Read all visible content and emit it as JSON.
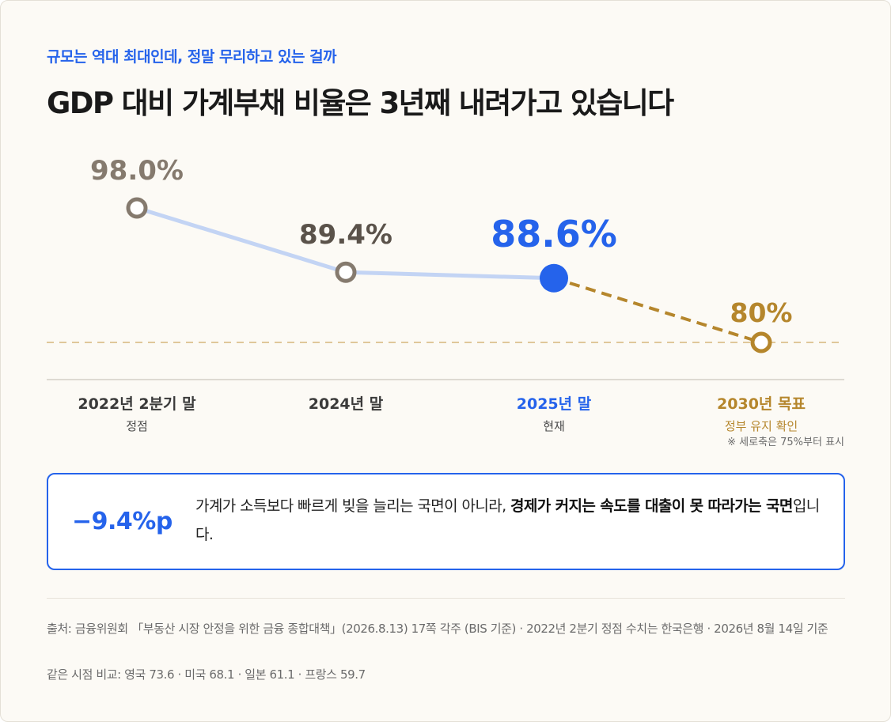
{
  "header": {
    "kicker": "규모는 역대 최대인데, 정말 무리하고 있는 걸까",
    "title": "GDP 대비 가계부채 비율은 3년째 내려가고 있습니다"
  },
  "chart_data": {
    "type": "line",
    "title": "GDP 대비 가계부채 비율은 3년째 내려가고 있습니다",
    "unit": "%",
    "ylim": [
      75,
      100
    ],
    "points": [
      {
        "category": "2022년 2분기 말",
        "sublabel": "정점",
        "value": 98.0,
        "label": "98.0%",
        "status": "past"
      },
      {
        "category": "2024년 말",
        "sublabel": "",
        "value": 89.4,
        "label": "89.4%",
        "status": "past"
      },
      {
        "category": "2025년 말",
        "sublabel": "현재",
        "value": 88.6,
        "label": "88.6%",
        "status": "current"
      },
      {
        "category": "2030년 목표",
        "sublabel": "정부 유지 확인",
        "value": 80,
        "label": "80%",
        "status": "target"
      }
    ],
    "reference_line": {
      "value": 80,
      "style": "dashed"
    },
    "axis_note": "※ 세로축은 75%부터 표시",
    "colors": {
      "past_line": "#c3d4f4",
      "past_marker": "#857a6e",
      "past_label": "#5a524a",
      "current": "#2563eb",
      "target": "#b5862c",
      "reference": "#dfc79a",
      "category": "#3a3a3a"
    }
  },
  "callout": {
    "metric": "−9.4%p",
    "text_plain": "가계가 소득보다 빠르게 빚을 늘리는 국면이 아니라, ",
    "text_bold": "경제가 커지는 속도를 대출이 못 따라가는 국면",
    "text_end": "입니다."
  },
  "footer": {
    "source": "출처: 금융위원회 「부동산 시장 안정을 위한 금융 종합대책」(2026.8.13) 17쪽 각주 (BIS 기준) · 2022년 2분기 정점 수치는 한국은행 · 2026년 8월 14일 기준",
    "comparison": "같은 시점 비교: 영국 73.6 · 미국 68.1 · 일본 61.1 · 프랑스 59.7"
  }
}
